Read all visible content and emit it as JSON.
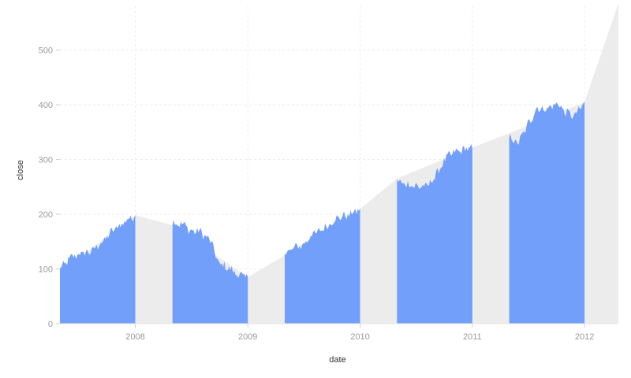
{
  "chart_data": {
    "type": "area",
    "xlabel": "date",
    "ylabel": "close",
    "x_ticks": [
      "2008",
      "2009",
      "2010",
      "2011",
      "2012"
    ],
    "y_ticks": [
      0,
      100,
      200,
      300,
      400,
      500
    ],
    "xlim": [
      "2007-05-01",
      "2012-04-20"
    ],
    "ylim": [
      0,
      580
    ],
    "grid": true,
    "colors": {
      "area": "#729ffa",
      "background_area": "#ececec"
    },
    "background_area": {
      "x": [
        "2007-05-01",
        "2008-01-01",
        "2008-05-01",
        "2009-01-01",
        "2009-05-01",
        "2010-01-01",
        "2010-05-01",
        "2011-01-01",
        "2011-05-01",
        "2012-01-01",
        "2012-04-20"
      ],
      "y": [
        95,
        198,
        180,
        85,
        125,
        210,
        265,
        322,
        348,
        405,
        585
      ]
    },
    "segments": [
      {
        "x": [
          "2007-05-01",
          "2007-06-01",
          "2007-07-01",
          "2007-08-01",
          "2007-09-01",
          "2007-10-01",
          "2007-11-01",
          "2007-12-01",
          "2008-01-01"
        ],
        "y": [
          100,
          118,
          128,
          130,
          140,
          160,
          175,
          188,
          198
        ]
      },
      {
        "x": [
          "2008-05-01",
          "2008-06-01",
          "2008-07-01",
          "2008-08-01",
          "2008-09-01",
          "2008-10-01",
          "2008-11-01",
          "2008-12-01",
          "2009-01-01"
        ],
        "y": [
          185,
          182,
          170,
          168,
          150,
          110,
          100,
          90,
          85
        ]
      },
      {
        "x": [
          "2009-05-01",
          "2009-06-01",
          "2009-07-01",
          "2009-08-01",
          "2009-09-01",
          "2009-10-01",
          "2009-11-01",
          "2009-12-01",
          "2010-01-01"
        ],
        "y": [
          130,
          138,
          145,
          165,
          170,
          188,
          195,
          200,
          210
        ]
      },
      {
        "x": [
          "2010-05-01",
          "2010-06-01",
          "2010-07-01",
          "2010-08-01",
          "2010-09-01",
          "2010-10-01",
          "2010-11-01",
          "2010-12-01",
          "2011-01-01"
        ],
        "y": [
          260,
          255,
          252,
          250,
          265,
          300,
          312,
          318,
          322
        ]
      },
      {
        "x": [
          "2011-05-01",
          "2011-06-01",
          "2011-07-01",
          "2011-08-01",
          "2011-09-01",
          "2011-10-01",
          "2011-11-01",
          "2011-12-01",
          "2012-01-01"
        ],
        "y": [
          340,
          330,
          365,
          395,
          390,
          405,
          385,
          380,
          405
        ]
      }
    ]
  }
}
